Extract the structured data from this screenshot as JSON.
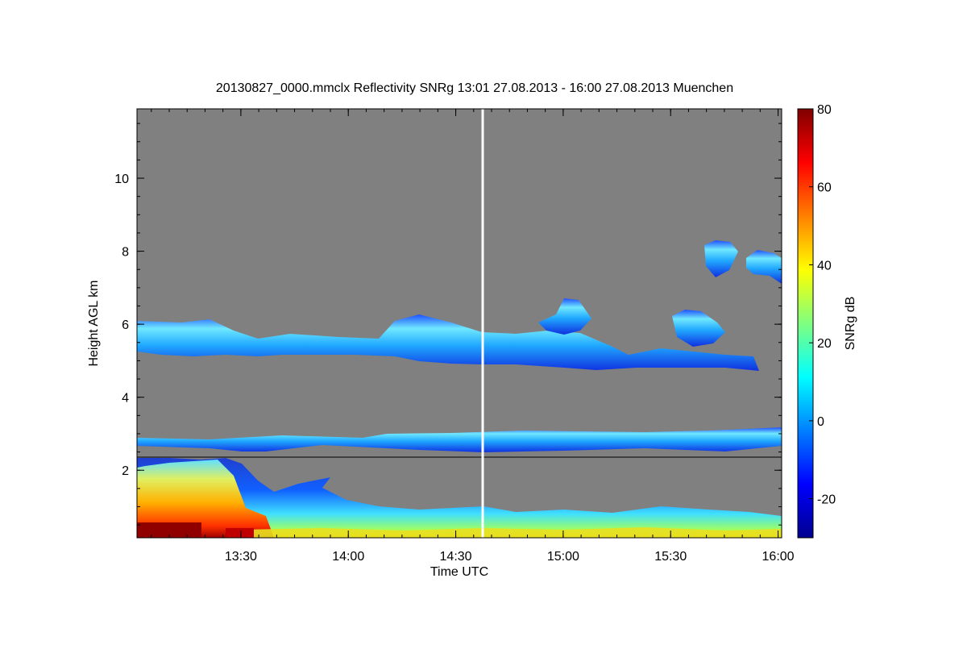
{
  "chart_data": {
    "type": "heatmap",
    "title": "20130827_0000.mmclx Reflectivity SNRg   13:01 27.08.2013 - 16:00 27.08.2013 Muenchen",
    "xlabel": "Time UTC",
    "ylabel": "Height AGL km",
    "colorbar_label": "SNRg dB",
    "x_range_minutes": [
      781,
      961
    ],
    "x_ticks": [
      {
        "minutes": 810,
        "label": "13:30"
      },
      {
        "minutes": 840,
        "label": "14:00"
      },
      {
        "minutes": 870,
        "label": "14:30"
      },
      {
        "minutes": 900,
        "label": "15:00"
      },
      {
        "minutes": 930,
        "label": "15:30"
      },
      {
        "minutes": 960,
        "label": "16:00"
      }
    ],
    "ylim_km": [
      0.15,
      11.9
    ],
    "y_ticks": [
      {
        "value": 2,
        "label": "2"
      },
      {
        "value": 4,
        "label": "4"
      },
      {
        "value": 6,
        "label": "6"
      },
      {
        "value": 8,
        "label": "8"
      },
      {
        "value": 10,
        "label": "10"
      }
    ],
    "colorbar_range_db": [
      -30,
      80
    ],
    "colorbar_ticks": [
      {
        "value": -20,
        "label": "-20"
      },
      {
        "value": 0,
        "label": "0"
      },
      {
        "value": 20,
        "label": "20"
      },
      {
        "value": 40,
        "label": "40"
      },
      {
        "value": 60,
        "label": "60"
      },
      {
        "value": 80,
        "label": "80"
      }
    ],
    "background_color": "#808080",
    "marker_line_minutes": 877,
    "marker_line_color": "#ffffff",
    "reference_line_km": 2.4,
    "cloud_layers": [
      {
        "name": "",
        "t_start": 781,
        "t_end": 958,
        "height_km": [
          4.9,
          6.5
        ],
        "snr_db": [
          -10,
          12
        ]
      },
      {
        "name": "",
        "t_start": 781,
        "t_end": 961,
        "height_km": [
          2.5,
          3.1
        ],
        "snr_db": [
          -5,
          12
        ]
      },
      {
        "name": "",
        "t_start": 935,
        "t_end": 944,
        "height_km": [
          5.5,
          6.3
        ],
        "snr_db": [
          5,
          15
        ]
      },
      {
        "name": "",
        "t_start": 939,
        "t_end": 961,
        "height_km": [
          7.4,
          8.4
        ],
        "snr_db": [
          5,
          15
        ]
      },
      {
        "name": "",
        "t_start": 781,
        "t_end": 961,
        "height_km": [
          0.15,
          2.4
        ],
        "snr_db": [
          -10,
          80
        ]
      }
    ]
  }
}
